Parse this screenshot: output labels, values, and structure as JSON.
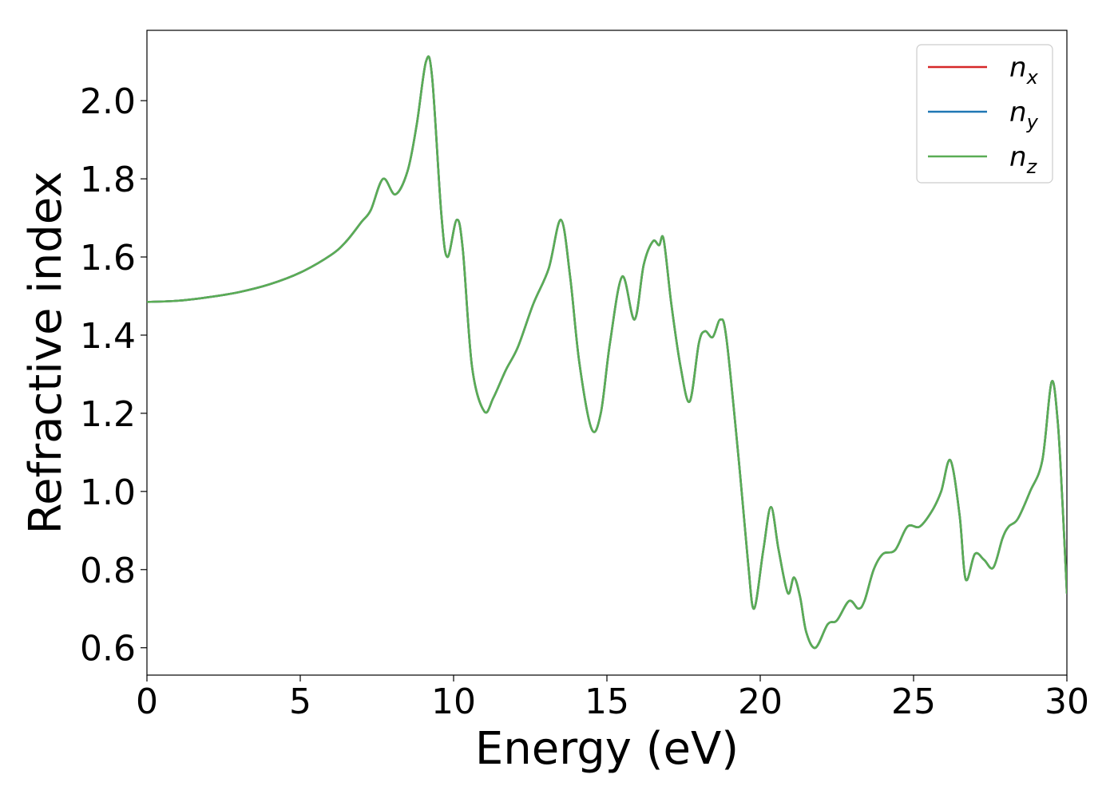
{
  "chart_data": {
    "type": "line",
    "xlabel": "Energy (eV)",
    "ylabel": "Refractive index",
    "xlim": [
      0,
      30
    ],
    "ylim": [
      0.53,
      2.18
    ],
    "xticks": [
      "0",
      "5",
      "10",
      "15",
      "20",
      "25",
      "30"
    ],
    "yticks": [
      "0.6",
      "0.8",
      "1.0",
      "1.2",
      "1.4",
      "1.6",
      "1.8",
      "2.0"
    ],
    "grid": false,
    "legend_position": "top-right",
    "x": [
      0,
      1,
      2,
      3,
      4,
      5,
      6,
      6.5,
      7,
      7.3,
      7.7,
      8.1,
      8.5,
      8.8,
      9.1,
      9.3,
      9.6,
      9.8,
      10.1,
      10.3,
      10.6,
      11.0,
      11.3,
      11.7,
      12.1,
      12.6,
      13.1,
      13.5,
      13.8,
      14.1,
      14.5,
      14.8,
      15.1,
      15.5,
      15.9,
      16.2,
      16.5,
      16.7,
      16.85,
      17.1,
      17.4,
      17.7,
      18.0,
      18.2,
      18.45,
      18.7,
      18.9,
      19.3,
      19.6,
      19.8,
      20.1,
      20.35,
      20.6,
      20.9,
      21.1,
      21.3,
      21.5,
      21.8,
      22.2,
      22.5,
      22.9,
      23.2,
      23.4,
      23.7,
      24.0,
      24.4,
      24.8,
      25.2,
      25.6,
      25.9,
      26.2,
      26.5,
      26.7,
      27.0,
      27.3,
      27.6,
      27.9,
      28.1,
      28.4,
      28.8,
      29.2,
      29.5,
      29.7,
      29.85,
      30
    ],
    "series": [
      {
        "name": "n_x",
        "color": "#d62728",
        "values": [
          1.485,
          1.488,
          1.497,
          1.51,
          1.53,
          1.56,
          1.605,
          1.64,
          1.69,
          1.72,
          1.8,
          1.76,
          1.82,
          1.94,
          2.1,
          2.06,
          1.71,
          1.6,
          1.695,
          1.62,
          1.32,
          1.205,
          1.24,
          1.31,
          1.37,
          1.48,
          1.57,
          1.695,
          1.55,
          1.33,
          1.16,
          1.2,
          1.38,
          1.55,
          1.44,
          1.58,
          1.64,
          1.63,
          1.645,
          1.48,
          1.32,
          1.23,
          1.38,
          1.41,
          1.395,
          1.44,
          1.39,
          1.08,
          0.82,
          0.7,
          0.85,
          0.96,
          0.85,
          0.74,
          0.78,
          0.73,
          0.64,
          0.6,
          0.66,
          0.67,
          0.72,
          0.7,
          0.72,
          0.8,
          0.84,
          0.85,
          0.91,
          0.91,
          0.95,
          1.0,
          1.08,
          0.94,
          0.775,
          0.84,
          0.825,
          0.805,
          0.88,
          0.91,
          0.93,
          1.0,
          1.08,
          1.28,
          1.18,
          0.98,
          0.74
        ]
      },
      {
        "name": "n_y",
        "color": "#1f77b4",
        "values": [
          1.485,
          1.488,
          1.497,
          1.51,
          1.53,
          1.56,
          1.605,
          1.64,
          1.69,
          1.72,
          1.8,
          1.76,
          1.82,
          1.94,
          2.1,
          2.06,
          1.71,
          1.6,
          1.695,
          1.62,
          1.32,
          1.205,
          1.24,
          1.31,
          1.37,
          1.48,
          1.57,
          1.695,
          1.55,
          1.33,
          1.16,
          1.2,
          1.38,
          1.55,
          1.44,
          1.58,
          1.64,
          1.63,
          1.645,
          1.48,
          1.32,
          1.23,
          1.38,
          1.41,
          1.395,
          1.44,
          1.39,
          1.08,
          0.82,
          0.7,
          0.85,
          0.96,
          0.85,
          0.74,
          0.78,
          0.73,
          0.64,
          0.6,
          0.66,
          0.67,
          0.72,
          0.7,
          0.72,
          0.8,
          0.84,
          0.85,
          0.91,
          0.91,
          0.95,
          1.0,
          1.08,
          0.94,
          0.775,
          0.84,
          0.825,
          0.805,
          0.88,
          0.91,
          0.93,
          1.0,
          1.08,
          1.28,
          1.18,
          0.98,
          0.74
        ]
      },
      {
        "name": "n_z",
        "color": "#5aad55",
        "values": [
          1.485,
          1.488,
          1.497,
          1.51,
          1.53,
          1.56,
          1.605,
          1.64,
          1.69,
          1.72,
          1.8,
          1.76,
          1.82,
          1.94,
          2.1,
          2.06,
          1.71,
          1.6,
          1.695,
          1.62,
          1.32,
          1.205,
          1.24,
          1.31,
          1.37,
          1.48,
          1.57,
          1.695,
          1.55,
          1.33,
          1.16,
          1.2,
          1.38,
          1.55,
          1.44,
          1.58,
          1.64,
          1.63,
          1.645,
          1.48,
          1.32,
          1.23,
          1.38,
          1.41,
          1.395,
          1.44,
          1.39,
          1.08,
          0.82,
          0.7,
          0.85,
          0.96,
          0.85,
          0.74,
          0.78,
          0.73,
          0.64,
          0.6,
          0.66,
          0.67,
          0.72,
          0.7,
          0.72,
          0.8,
          0.84,
          0.85,
          0.91,
          0.91,
          0.95,
          1.0,
          1.08,
          0.94,
          0.775,
          0.84,
          0.825,
          0.805,
          0.88,
          0.91,
          0.93,
          1.0,
          1.08,
          1.28,
          1.18,
          0.98,
          0.74
        ]
      }
    ],
    "legend": [
      {
        "base": "n",
        "sub": "x"
      },
      {
        "base": "n",
        "sub": "y"
      },
      {
        "base": "n",
        "sub": "z"
      }
    ]
  }
}
